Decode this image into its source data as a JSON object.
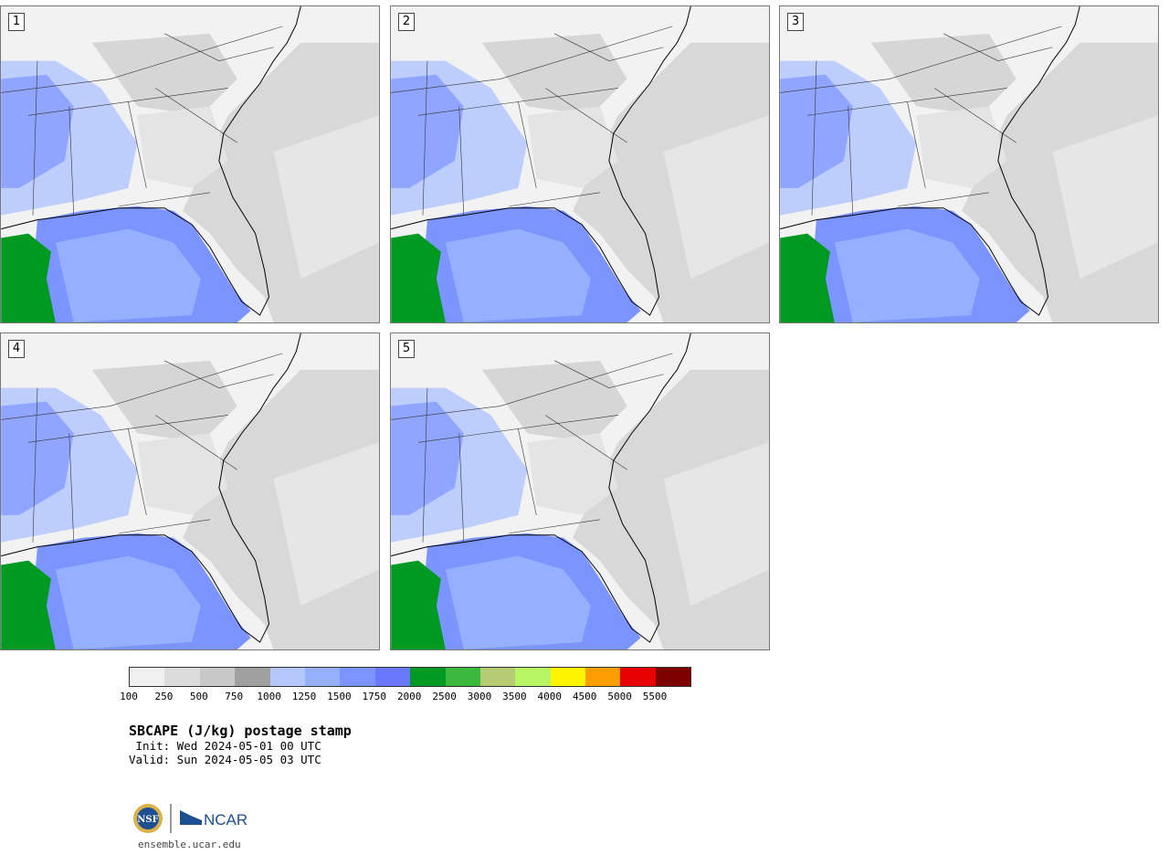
{
  "panels": [
    {
      "number": "1"
    },
    {
      "number": "2"
    },
    {
      "number": "3"
    },
    {
      "number": "4"
    },
    {
      "number": "5"
    }
  ],
  "colorbar": {
    "colors": [
      "#f0f0f0",
      "#dcdcdc",
      "#c8c8c8",
      "#a0a0a0",
      "#b4c8ff",
      "#94b0ff",
      "#7c94ff",
      "#6a78ff",
      "#009a22",
      "#3cb83c",
      "#b6cc72",
      "#b6f564",
      "#fff500",
      "#ff9e00",
      "#e80000",
      "#7e0000"
    ],
    "labels": [
      "100",
      "250",
      "500",
      "750",
      "1000",
      "1250",
      "1500",
      "1750",
      "2000",
      "2500",
      "3000",
      "3500",
      "4000",
      "4500",
      "5000",
      "5500"
    ]
  },
  "title": "SBCAPE (J/kg) postage stamp",
  "init": " Init: Wed 2024-05-01 00 UTC",
  "valid": "Valid: Sun 2024-05-05 03 UTC",
  "logos": {
    "left": "NSF",
    "right": "NCAR"
  },
  "website": "ensemble.ucar.edu"
}
